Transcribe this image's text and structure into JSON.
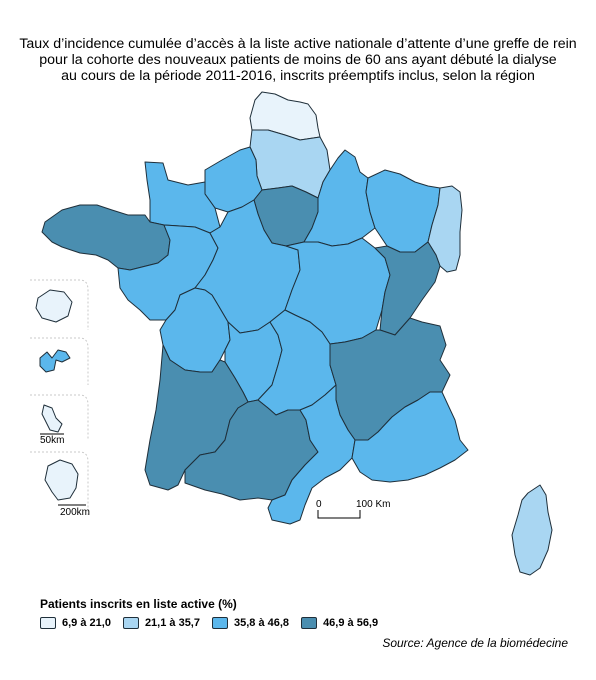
{
  "title": {
    "line1": "Taux d’incidence cumulée d’accès à la liste active nationale d’attente d’une greffe de rein",
    "line2": "pour la cohorte des nouveaux patients de moins de 60 ans ayant débuté la dialyse",
    "line3": "au cours de la période 2011-2016, inscrits préemptifs inclus, selon la région"
  },
  "colors": {
    "class1": "#e8f3fb",
    "class2": "#a9d6f2",
    "class3": "#5bb7ec",
    "class4": "#4a8eb0",
    "stroke": "#1f2f3a"
  },
  "legend": {
    "title": "Patients inscrits en liste active (%)",
    "items": [
      {
        "label": "6,9 à 21,0",
        "color_key": "class1"
      },
      {
        "label": "21,1 à 35,7",
        "color_key": "class2"
      },
      {
        "label": "35,8 à 46,8",
        "color_key": "class3"
      },
      {
        "label": "46,9 à 56,9",
        "color_key": "class4"
      }
    ]
  },
  "scale": {
    "main_start": "0",
    "main_end": "100 Km",
    "inset_small": "50km",
    "inset_large": "200km"
  },
  "source": "Source: Agence de la biomédecine",
  "map_data": {
    "regions": [
      {
        "id": "nord-pas-de-calais",
        "class": "class1"
      },
      {
        "id": "picardie",
        "class": "class2"
      },
      {
        "id": "haute-normandie",
        "class": "class3"
      },
      {
        "id": "basse-normandie",
        "class": "class3"
      },
      {
        "id": "ile-de-france",
        "class": "class4"
      },
      {
        "id": "champagne-ardenne",
        "class": "class3"
      },
      {
        "id": "lorraine",
        "class": "class3"
      },
      {
        "id": "alsace",
        "class": "class2"
      },
      {
        "id": "bretagne",
        "class": "class4"
      },
      {
        "id": "pays-de-la-loire",
        "class": "class3"
      },
      {
        "id": "centre",
        "class": "class3"
      },
      {
        "id": "bourgogne",
        "class": "class3"
      },
      {
        "id": "franche-comte",
        "class": "class4"
      },
      {
        "id": "poitou-charentes",
        "class": "class3"
      },
      {
        "id": "limousin",
        "class": "class3"
      },
      {
        "id": "auvergne",
        "class": "class3"
      },
      {
        "id": "rhone-alpes",
        "class": "class4"
      },
      {
        "id": "aquitaine",
        "class": "class4"
      },
      {
        "id": "midi-pyrenees",
        "class": "class4"
      },
      {
        "id": "languedoc-roussillon",
        "class": "class3"
      },
      {
        "id": "provence-alpes-cote-d-azur",
        "class": "class3"
      },
      {
        "id": "corse",
        "class": "class2"
      },
      {
        "id": "la-reunion",
        "class": "class1"
      },
      {
        "id": "guadeloupe",
        "class": "class3"
      },
      {
        "id": "martinique",
        "class": "class1"
      },
      {
        "id": "guyane",
        "class": "class1"
      }
    ]
  }
}
